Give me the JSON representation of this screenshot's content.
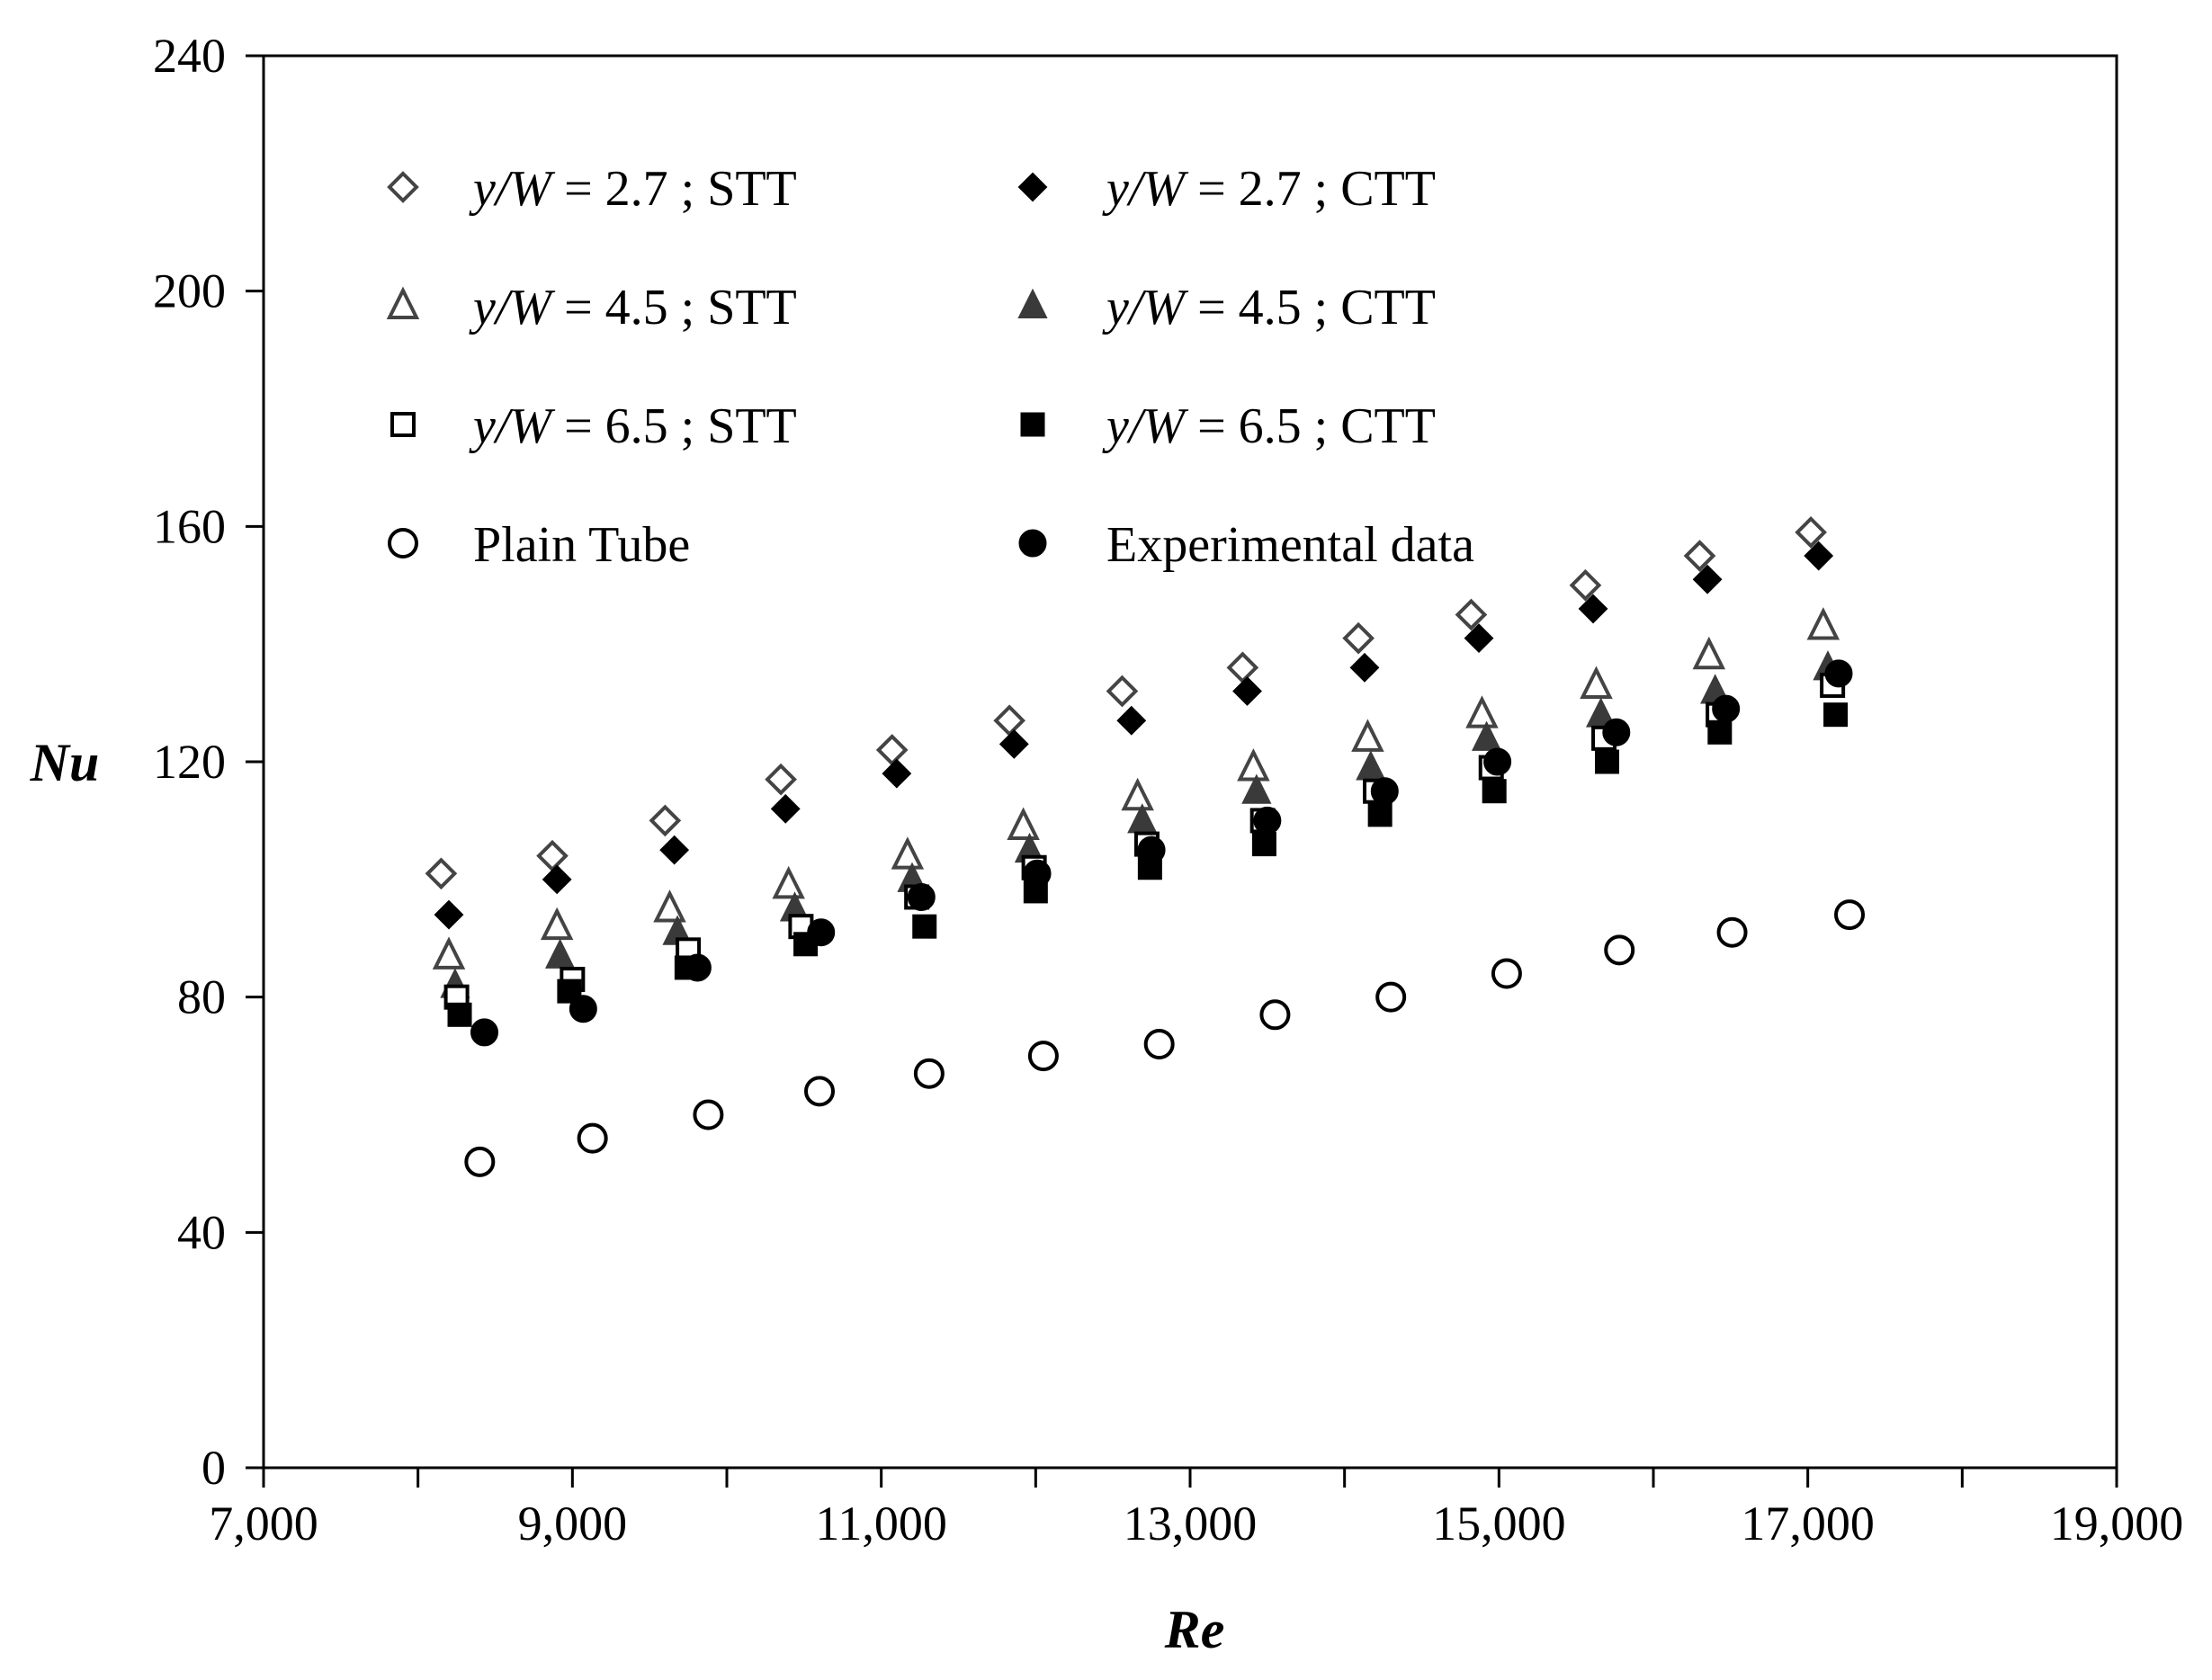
{
  "chart_data": {
    "type": "scatter",
    "title": "",
    "xlabel": "Re",
    "ylabel": "Nu",
    "xlim": [
      7000,
      19000
    ],
    "ylim": [
      0,
      240
    ],
    "x_ticks": [
      7000,
      9000,
      11000,
      13000,
      15000,
      17000,
      19000
    ],
    "x_minor_ticks": [
      8000,
      10000,
      12000,
      14000,
      16000,
      18000
    ],
    "x_tick_labels": [
      "7,000",
      "9,000",
      "11,000",
      "13,000",
      "15,000",
      "17,000",
      "19,000"
    ],
    "y_ticks": [
      0,
      40,
      80,
      120,
      160,
      200,
      240
    ],
    "y_tick_labels": [
      "0",
      "40",
      "80",
      "120",
      "160",
      "200",
      "240"
    ],
    "grid": false,
    "legend_position": "top-left, two columns",
    "series": [
      {
        "name": "y/W = 2.7 ; STT",
        "label_var": "y/W",
        "label_rest": " = 2.7 ;  STT",
        "marker": "diamond-open",
        "color": "#444444",
        "x": [
          8150,
          8870,
          9600,
          10350,
          11070,
          11830,
          12560,
          13340,
          14090,
          14820,
          15560,
          16300,
          17020
        ],
        "y": [
          101,
          104,
          110,
          117,
          122,
          127,
          132,
          136,
          141,
          145,
          150,
          155,
          159
        ]
      },
      {
        "name": "y/W = 2.7 ; CTT",
        "label_var": "y/W",
        "label_rest": " = 2.7 ;  CTT",
        "marker": "diamond-filled",
        "color": "#000000",
        "x": [
          8200,
          8900,
          9660,
          10380,
          11100,
          11860,
          12620,
          13370,
          14130,
          14870,
          15610,
          16350,
          17070
        ],
        "y": [
          94,
          100,
          105,
          112,
          118,
          123,
          127,
          132,
          136,
          141,
          146,
          151,
          155
        ]
      },
      {
        "name": "y/W = 4.5 ; STT",
        "label_var": "y/W",
        "label_rest": " = 4.5 ;  STT",
        "marker": "triangle-open",
        "color": "#444444",
        "x": [
          8200,
          8900,
          9630,
          10400,
          11170,
          11920,
          12660,
          13410,
          14150,
          14890,
          15630,
          16360,
          17100
        ],
        "y": [
          87,
          92,
          95,
          99,
          104,
          109,
          114,
          119,
          124,
          128,
          133,
          138,
          143
        ]
      },
      {
        "name": "y/W = 4.5 ; CTT",
        "label_var": "y/W",
        "label_rest": " = 4.5 ;  CTT",
        "marker": "triangle-filled",
        "color": "#3a3a3a",
        "x": [
          8240,
          8920,
          9680,
          10440,
          11200,
          11960,
          12690,
          13430,
          14170,
          14920,
          15660,
          16400,
          17130
        ],
        "y": [
          82,
          87,
          91,
          95,
          100,
          105,
          110,
          115,
          119,
          124,
          128,
          132,
          136
        ]
      },
      {
        "name": "y/W = 6.5 ; STT",
        "label_var": "y/W",
        "label_rest": " = 6.5 ;  STT",
        "marker": "square-open",
        "color": "#000000",
        "x": [
          8250,
          9000,
          9750,
          10480,
          11230,
          11990,
          12720,
          13470,
          14200,
          14950,
          15680,
          16420,
          17160
        ],
        "y": [
          80,
          83,
          88,
          92,
          97,
          102,
          106,
          110,
          115,
          119,
          124,
          128,
          133
        ]
      },
      {
        "name": "y/W = 6.5 ; CTT",
        "label_var": "y/W",
        "label_rest": " = 6.5 ;  CTT",
        "marker": "square-filled",
        "color": "#000000",
        "x": [
          8270,
          8980,
          9740,
          10510,
          11280,
          12000,
          12740,
          13480,
          14230,
          14970,
          15700,
          16430,
          17180
        ],
        "y": [
          77,
          81,
          85,
          89,
          92,
          98,
          102,
          106,
          111,
          115,
          120,
          125,
          128
        ]
      },
      {
        "name": "Plain Tube",
        "label_var": "",
        "label_rest": "Plain Tube",
        "marker": "circle-open",
        "color": "#000000",
        "x": [
          8400,
          9130,
          9880,
          10600,
          11310,
          12050,
          12800,
          13550,
          14300,
          15050,
          15780,
          16510,
          17270
        ],
        "y": [
          52,
          56,
          60,
          64,
          67,
          70,
          72,
          77,
          80,
          84,
          88,
          91,
          94
        ]
      },
      {
        "name": "Experimental data",
        "label_var": "",
        "label_rest": "Experimental data",
        "marker": "circle-filled",
        "color": "#000000",
        "x": [
          8430,
          9070,
          9810,
          10610,
          11260,
          12010,
          12750,
          13500,
          14260,
          14990,
          15760,
          16470,
          17200
        ],
        "y": [
          74,
          78,
          85,
          91,
          97,
          101,
          105,
          110,
          115,
          120,
          125,
          129,
          135
        ]
      }
    ]
  }
}
